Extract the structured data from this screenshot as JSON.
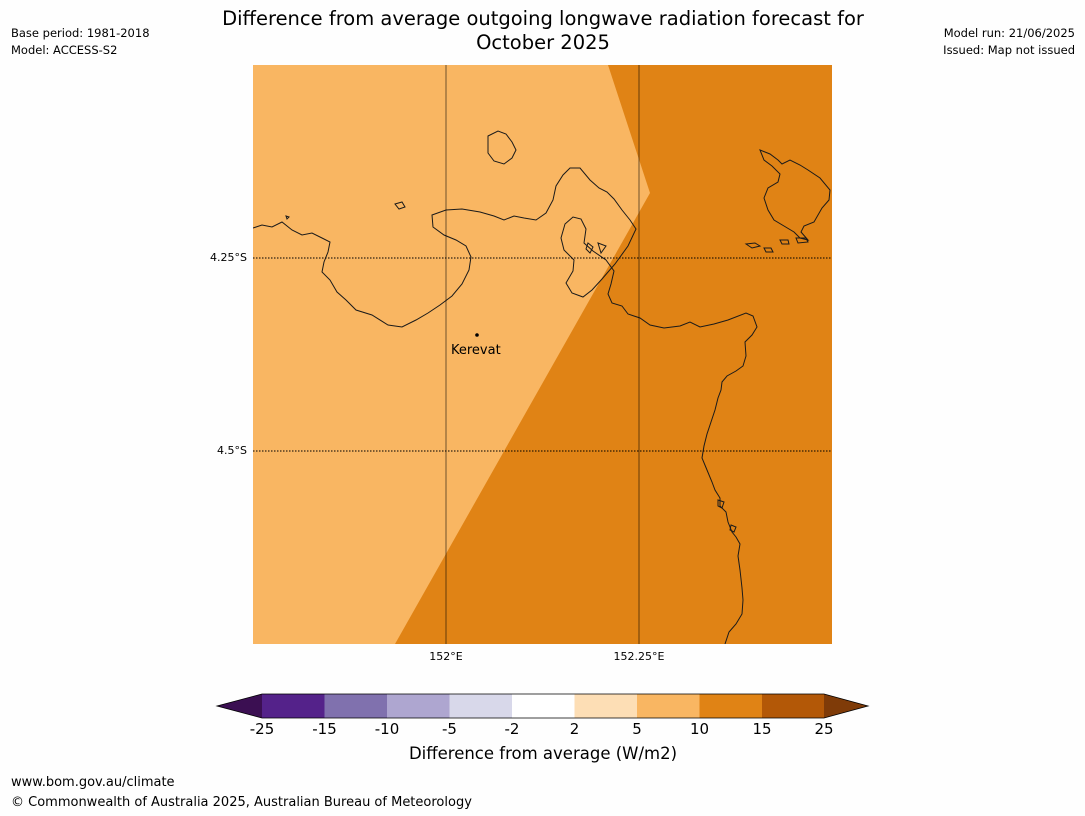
{
  "header": {
    "title_line1": "Difference from average outgoing longwave radiation forecast for",
    "title_line2": "October 2025",
    "base_period": "Base period: 1981-2018",
    "model": "Model: ACCESS-S2",
    "model_run": "Model run: 21/06/2025",
    "issued": "Issued: Map not issued"
  },
  "map": {
    "latitude_labels": [
      "4.25°S",
      "4.5°S"
    ],
    "longitude_labels": [
      "152°E",
      "152.25°E"
    ],
    "places": [
      {
        "name": "Kerevat",
        "icon": "point-marker"
      }
    ],
    "region_colors": {
      "category_5_to_10": "#f9b662",
      "category_10_to_15": "#e08315",
      "coastline": "#1a1a1a",
      "grid": "#000000"
    }
  },
  "colorbar": {
    "title": "Difference from average (W/m2)",
    "tick_labels": [
      "-25",
      "-15",
      "-10",
      "-5",
      "-2",
      "2",
      "5",
      "10",
      "15",
      "25"
    ],
    "colors": [
      "#3b0f52",
      "#54228a",
      "#8071ae",
      "#aea6d0",
      "#d8d8ea",
      "#ffffff",
      "#fddeb5",
      "#f9b662",
      "#e08315",
      "#b35807",
      "#7f3b08"
    ],
    "extend": "both"
  },
  "footer": {
    "url": "www.bom.gov.au/climate",
    "copyright": "© Commonwealth of Australia 2025, Australian Bureau of Meteorology"
  }
}
